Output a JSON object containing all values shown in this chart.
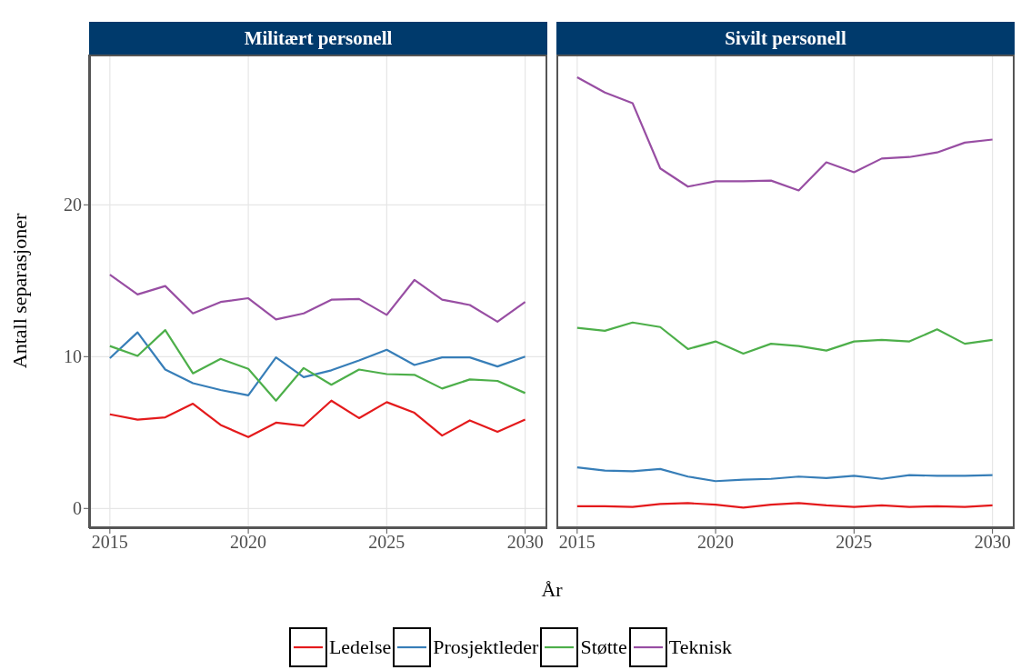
{
  "chart_data": [
    {
      "type": "line",
      "title": "Militært personell",
      "xlabel": "År",
      "ylabel": "Antall separasjoner",
      "x": [
        2015,
        2016,
        2017,
        2018,
        2019,
        2020,
        2021,
        2022,
        2023,
        2024,
        2025,
        2026,
        2027,
        2028,
        2029,
        2030
      ],
      "xlim": [
        2014.25,
        2030.8
      ],
      "xticks": [
        2015,
        2020,
        2025,
        2030
      ],
      "ylim": [
        -1.3,
        29.9
      ],
      "yticks": [
        0,
        10,
        20
      ],
      "grid": true,
      "legend": "bottom",
      "line_style": "solid",
      "series": [
        {
          "name": "Ledelse",
          "color": "#e41a1c",
          "values": [
            6.2,
            5.85,
            6.0,
            6.9,
            5.5,
            4.7,
            5.65,
            5.45,
            7.1,
            5.95,
            7.0,
            6.3,
            4.8,
            5.8,
            5.05,
            5.85
          ]
        },
        {
          "name": "Prosjektleder",
          "color": "#377eb8",
          "values": [
            9.9,
            11.6,
            9.15,
            8.25,
            7.8,
            7.45,
            9.95,
            8.65,
            9.1,
            9.75,
            10.45,
            9.45,
            9.95,
            9.95,
            9.35,
            10.0
          ]
        },
        {
          "name": "Støtte",
          "color": "#4daf4a",
          "values": [
            10.7,
            10.05,
            11.75,
            8.9,
            9.85,
            9.2,
            7.1,
            9.25,
            8.15,
            9.15,
            8.85,
            8.8,
            7.9,
            8.5,
            8.4,
            7.6
          ]
        },
        {
          "name": "Teknisk",
          "color": "#984ea3",
          "values": [
            15.4,
            14.1,
            14.65,
            12.85,
            13.6,
            13.85,
            12.45,
            12.85,
            13.75,
            13.8,
            12.75,
            15.05,
            13.75,
            13.4,
            12.3,
            13.6
          ]
        }
      ]
    },
    {
      "type": "line",
      "title": "Sivilt personell",
      "x": [
        2015,
        2016,
        2017,
        2018,
        2019,
        2020,
        2021,
        2022,
        2023,
        2024,
        2025,
        2026,
        2027,
        2028,
        2029,
        2030
      ],
      "xlim": [
        2014.25,
        2030.8
      ],
      "xticks": [
        2015,
        2020,
        2025,
        2030
      ],
      "ylim": [
        -1.3,
        29.9
      ],
      "yticks": [
        0,
        10,
        20
      ],
      "grid": true,
      "tick_labels": "x",
      "line_style": "solid",
      "series": [
        {
          "color": "#e41a1c",
          "values": [
            0.15,
            0.15,
            0.1,
            0.3,
            0.35,
            0.25,
            0.05,
            0.25,
            0.35,
            0.2,
            0.1,
            0.2,
            0.1,
            0.15,
            0.1,
            0.2
          ]
        },
        {
          "color": "#377eb8",
          "values": [
            2.7,
            2.5,
            2.45,
            2.6,
            2.1,
            1.8,
            1.9,
            1.95,
            2.1,
            2.0,
            2.15,
            1.95,
            2.2,
            2.15,
            2.15,
            2.2
          ]
        },
        {
          "color": "#4daf4a",
          "values": [
            11.9,
            11.7,
            12.25,
            11.95,
            10.5,
            11.0,
            10.2,
            10.85,
            10.7,
            10.4,
            11.0,
            11.1,
            11.0,
            11.8,
            10.85,
            11.1
          ]
        },
        {
          "color": "#984ea3",
          "values": [
            28.4,
            27.4,
            26.7,
            22.4,
            21.2,
            21.55,
            21.55,
            21.6,
            20.95,
            22.8,
            22.15,
            23.05,
            23.15,
            23.45,
            24.1,
            24.3
          ]
        }
      ]
    }
  ]
}
